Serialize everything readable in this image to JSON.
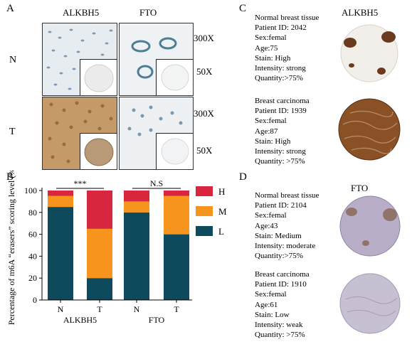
{
  "panel_a": {
    "letter": "A",
    "col_labels": [
      "ALKBH5",
      "FTO"
    ],
    "row_labels": [
      "N",
      "T"
    ],
    "magnifications": [
      "300X",
      "50X",
      "300X",
      "50X"
    ]
  },
  "panel_b": {
    "letter": "B"
  },
  "panel_c": {
    "letter": "C",
    "title": "ALKBH5",
    "normal_info": [
      "Normal breast tissue",
      "Patient ID: 2042",
      "Sex:femal",
      "Age:75",
      "Stain: High",
      "Intensity: strong",
      "Quantity:>75%"
    ],
    "carcinoma_info": [
      "Breast carcinoma",
      "Patient ID: 1939",
      "Sex:femal",
      "Age:87",
      "Stain: High",
      "Intensity: strong",
      "Quantity: >75%"
    ]
  },
  "panel_d": {
    "letter": "D",
    "title": "FTO",
    "normal_info": [
      "Normal breast tissue",
      "Patient ID: 2104",
      "Sex:femal",
      "Age:43",
      "Stain: Medium",
      "Intensity: moderate",
      "Quantity:>75%"
    ],
    "carcinoma_info": [
      "Breast  carcinoma",
      "Patient ID: 1910",
      "Sex:femal",
      "Age:61",
      "Stain: Low",
      "Intensity: weak",
      "Quantity: >75%"
    ]
  },
  "chart_data": {
    "type": "bar",
    "stacked": true,
    "ylabel": "Percentage of m6A “erasers” scoring level (%)",
    "ylim": [
      0,
      100
    ],
    "yticks": [
      0,
      20,
      40,
      60,
      80,
      100
    ],
    "categories": [
      "N",
      "T",
      "N",
      "T"
    ],
    "groups": [
      {
        "label": "ALKBH5",
        "categories": [
          "N",
          "T"
        ]
      },
      {
        "label": "FTO",
        "categories": [
          "N",
          "T"
        ]
      }
    ],
    "series": [
      {
        "name": "L",
        "color": "#0f4a5c",
        "values": [
          85,
          20,
          80,
          60
        ]
      },
      {
        "name": "M",
        "color": "#f7941d",
        "values": [
          10,
          45,
          10,
          35
        ]
      },
      {
        "name": "H",
        "color": "#d7263d",
        "values": [
          5,
          35,
          10,
          5
        ]
      }
    ],
    "significance": [
      "***",
      "N.S"
    ],
    "legend_position": "right"
  }
}
